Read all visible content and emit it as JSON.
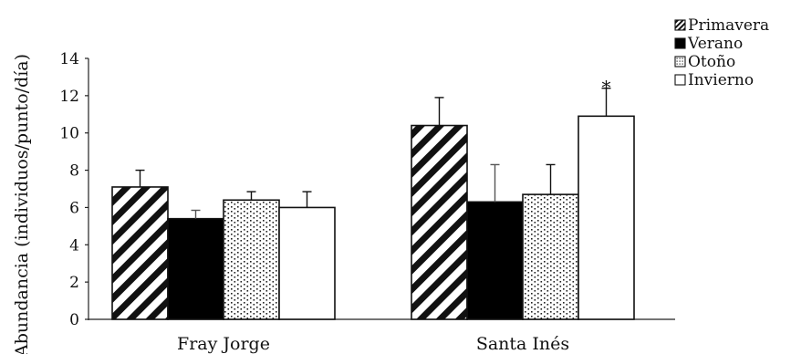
{
  "chart_data": {
    "type": "bar",
    "categories": [
      "Fray Jorge",
      "Santa Inés"
    ],
    "series": [
      {
        "name": "Primavera",
        "values": [
          7.1,
          10.4
        ],
        "errors": [
          0.9,
          1.5
        ],
        "pattern": "diagonal-hatch"
      },
      {
        "name": "Verano",
        "values": [
          5.4,
          6.3
        ],
        "errors": [
          0.45,
          2.0
        ],
        "pattern": "solid-black"
      },
      {
        "name": "Otoño",
        "values": [
          6.4,
          6.7
        ],
        "errors": [
          0.45,
          1.6
        ],
        "pattern": "dotted"
      },
      {
        "name": "Invierno",
        "values": [
          6.0,
          10.9
        ],
        "errors": [
          0.85,
          1.5
        ],
        "pattern": "white"
      }
    ],
    "annotations": [
      {
        "text": "*",
        "category": "Santa Inés",
        "series": "Invierno"
      }
    ],
    "ylabel": "Abundancia (individuos/punto/día)",
    "xlabel": "",
    "ylim": [
      0,
      14
    ],
    "yticks": [
      0,
      2,
      4,
      6,
      8,
      10,
      12,
      14
    ],
    "grid": false,
    "legend": "top-right",
    "colors": {
      "bar_fill": "#ffffff",
      "bar_dark": "#000000",
      "stroke": "#111111"
    }
  }
}
